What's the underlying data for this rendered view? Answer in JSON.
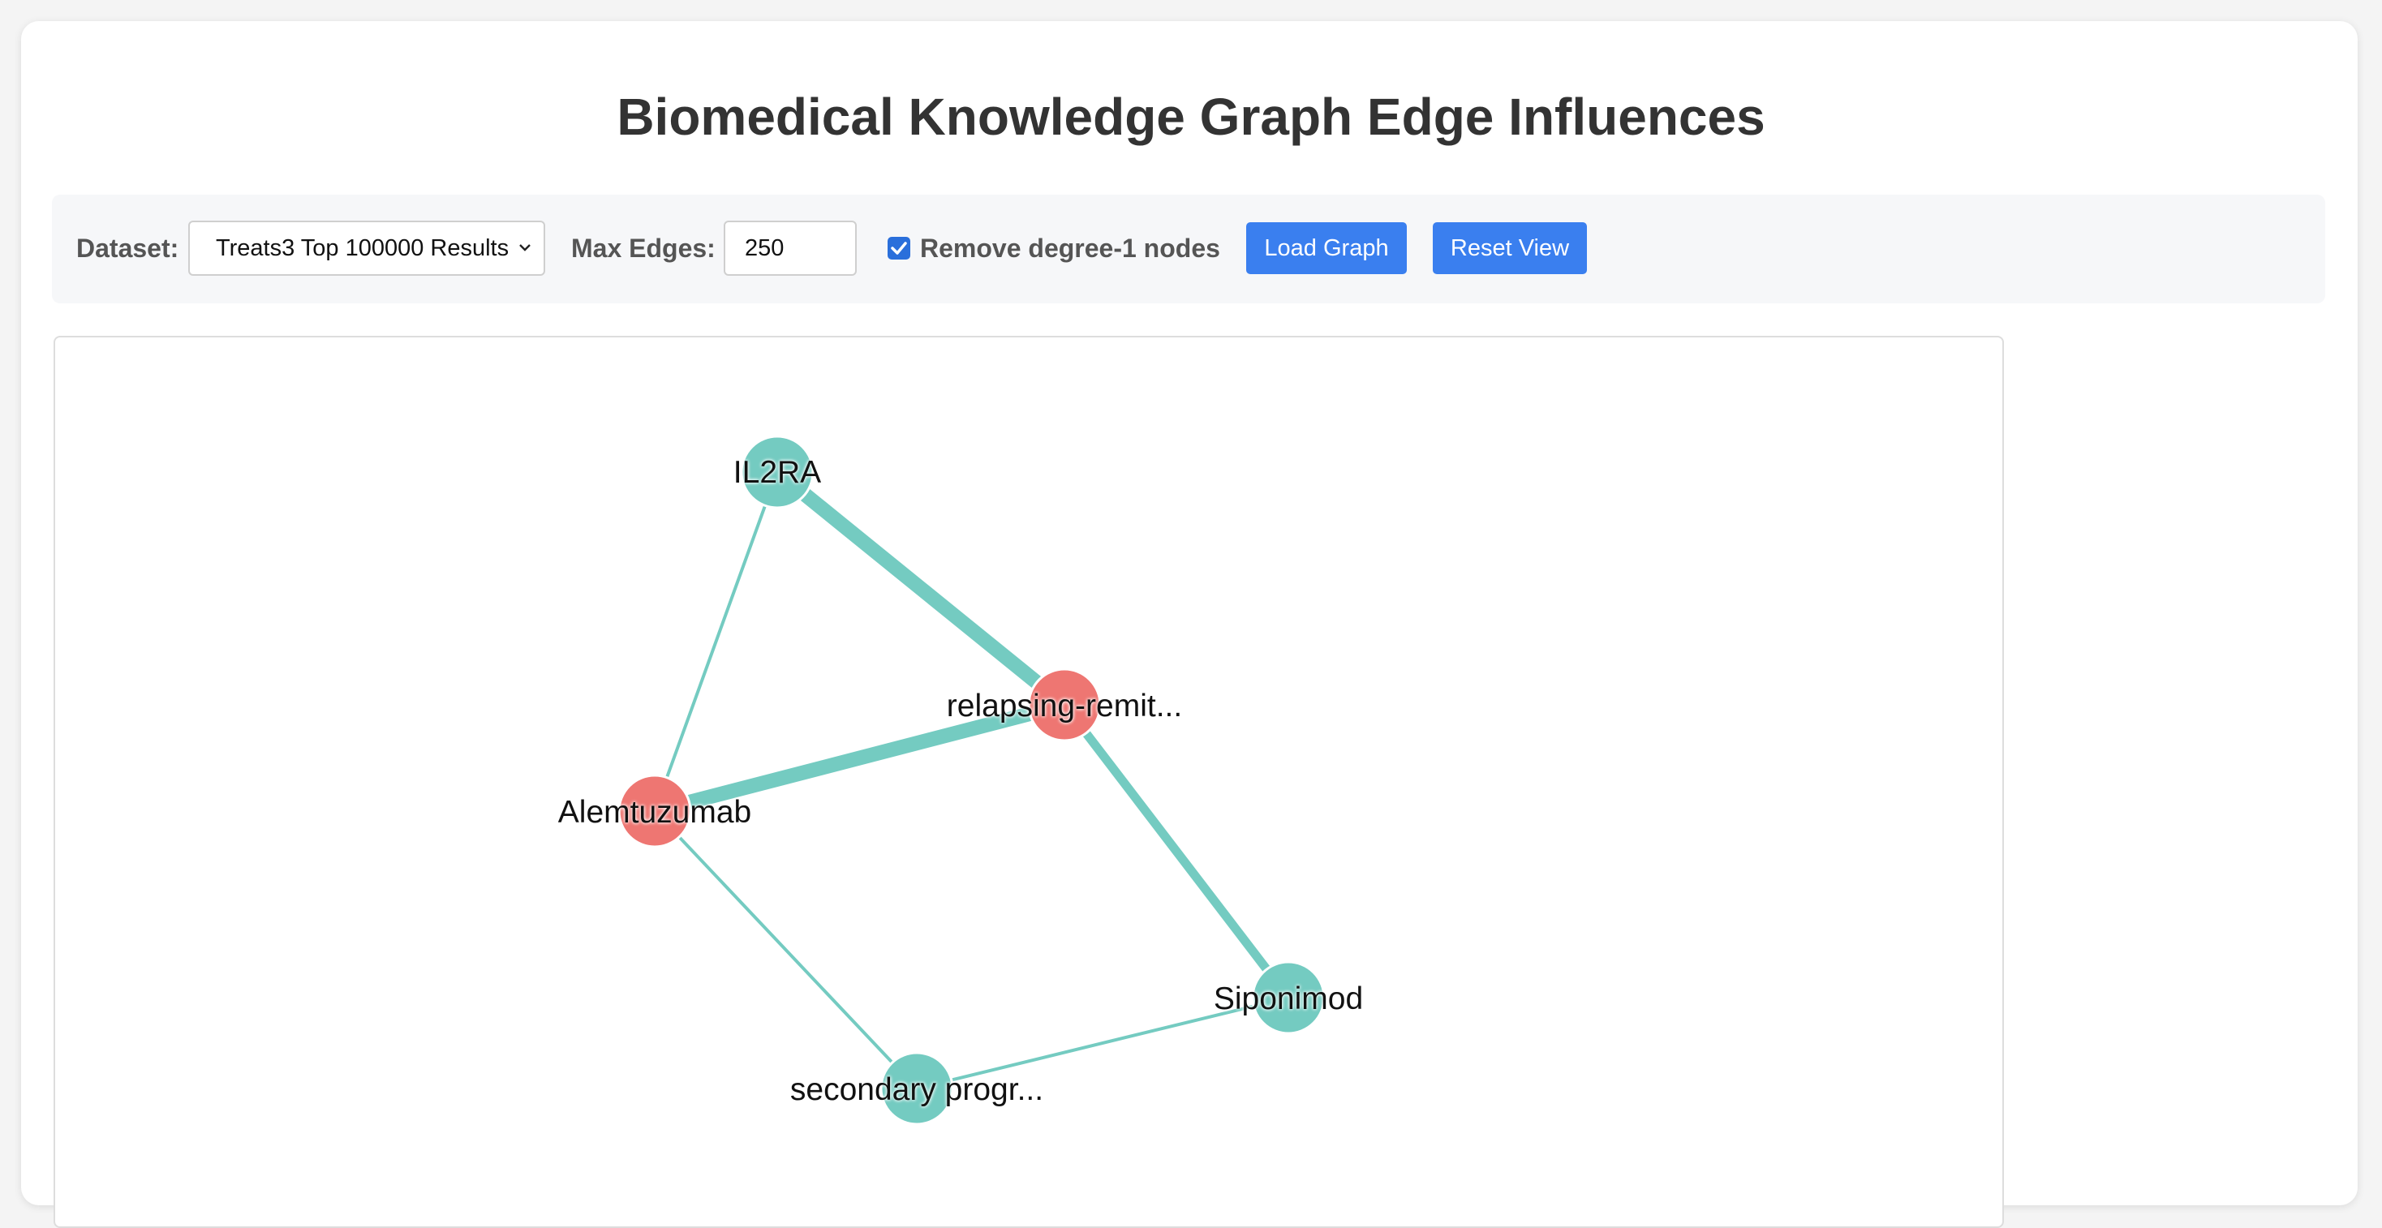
{
  "title": "Biomedical Knowledge Graph Edge Influences",
  "controls": {
    "dataset_label": "Dataset:",
    "dataset_selected": "Treats3 Top 100000 Results",
    "max_edges_label": "Max Edges:",
    "max_edges_value": "250",
    "remove_degree1_label": "Remove degree-1 nodes",
    "remove_degree1_checked": true,
    "load_graph_label": "Load Graph",
    "reset_view_label": "Reset View"
  },
  "colors": {
    "accent": "#3a7fef",
    "node_teal": "#74cbc1",
    "node_red": "#ee7672",
    "edge": "#74cbc1"
  },
  "graph": {
    "nodes": [
      {
        "id": "il2ra",
        "label": "IL2RA",
        "color": "#74cbc1"
      },
      {
        "id": "rrms",
        "label": "relapsing-remit...",
        "color": "#ee7672"
      },
      {
        "id": "alemtuzumab",
        "label": "Alemtuzumab",
        "color": "#ee7672"
      },
      {
        "id": "siponimod",
        "label": "Siponimod",
        "color": "#74cbc1"
      },
      {
        "id": "spms",
        "label": "secondary progr...",
        "color": "#74cbc1"
      }
    ],
    "edges": [
      {
        "source": "il2ra",
        "target": "rrms",
        "weight": "heavy"
      },
      {
        "source": "il2ra",
        "target": "alemtuzumab",
        "weight": "light"
      },
      {
        "source": "alemtuzumab",
        "target": "rrms",
        "weight": "heavy"
      },
      {
        "source": "rrms",
        "target": "siponimod",
        "weight": "medium"
      },
      {
        "source": "alemtuzumab",
        "target": "spms",
        "weight": "light"
      },
      {
        "source": "spms",
        "target": "siponimod",
        "weight": "light"
      }
    ]
  }
}
